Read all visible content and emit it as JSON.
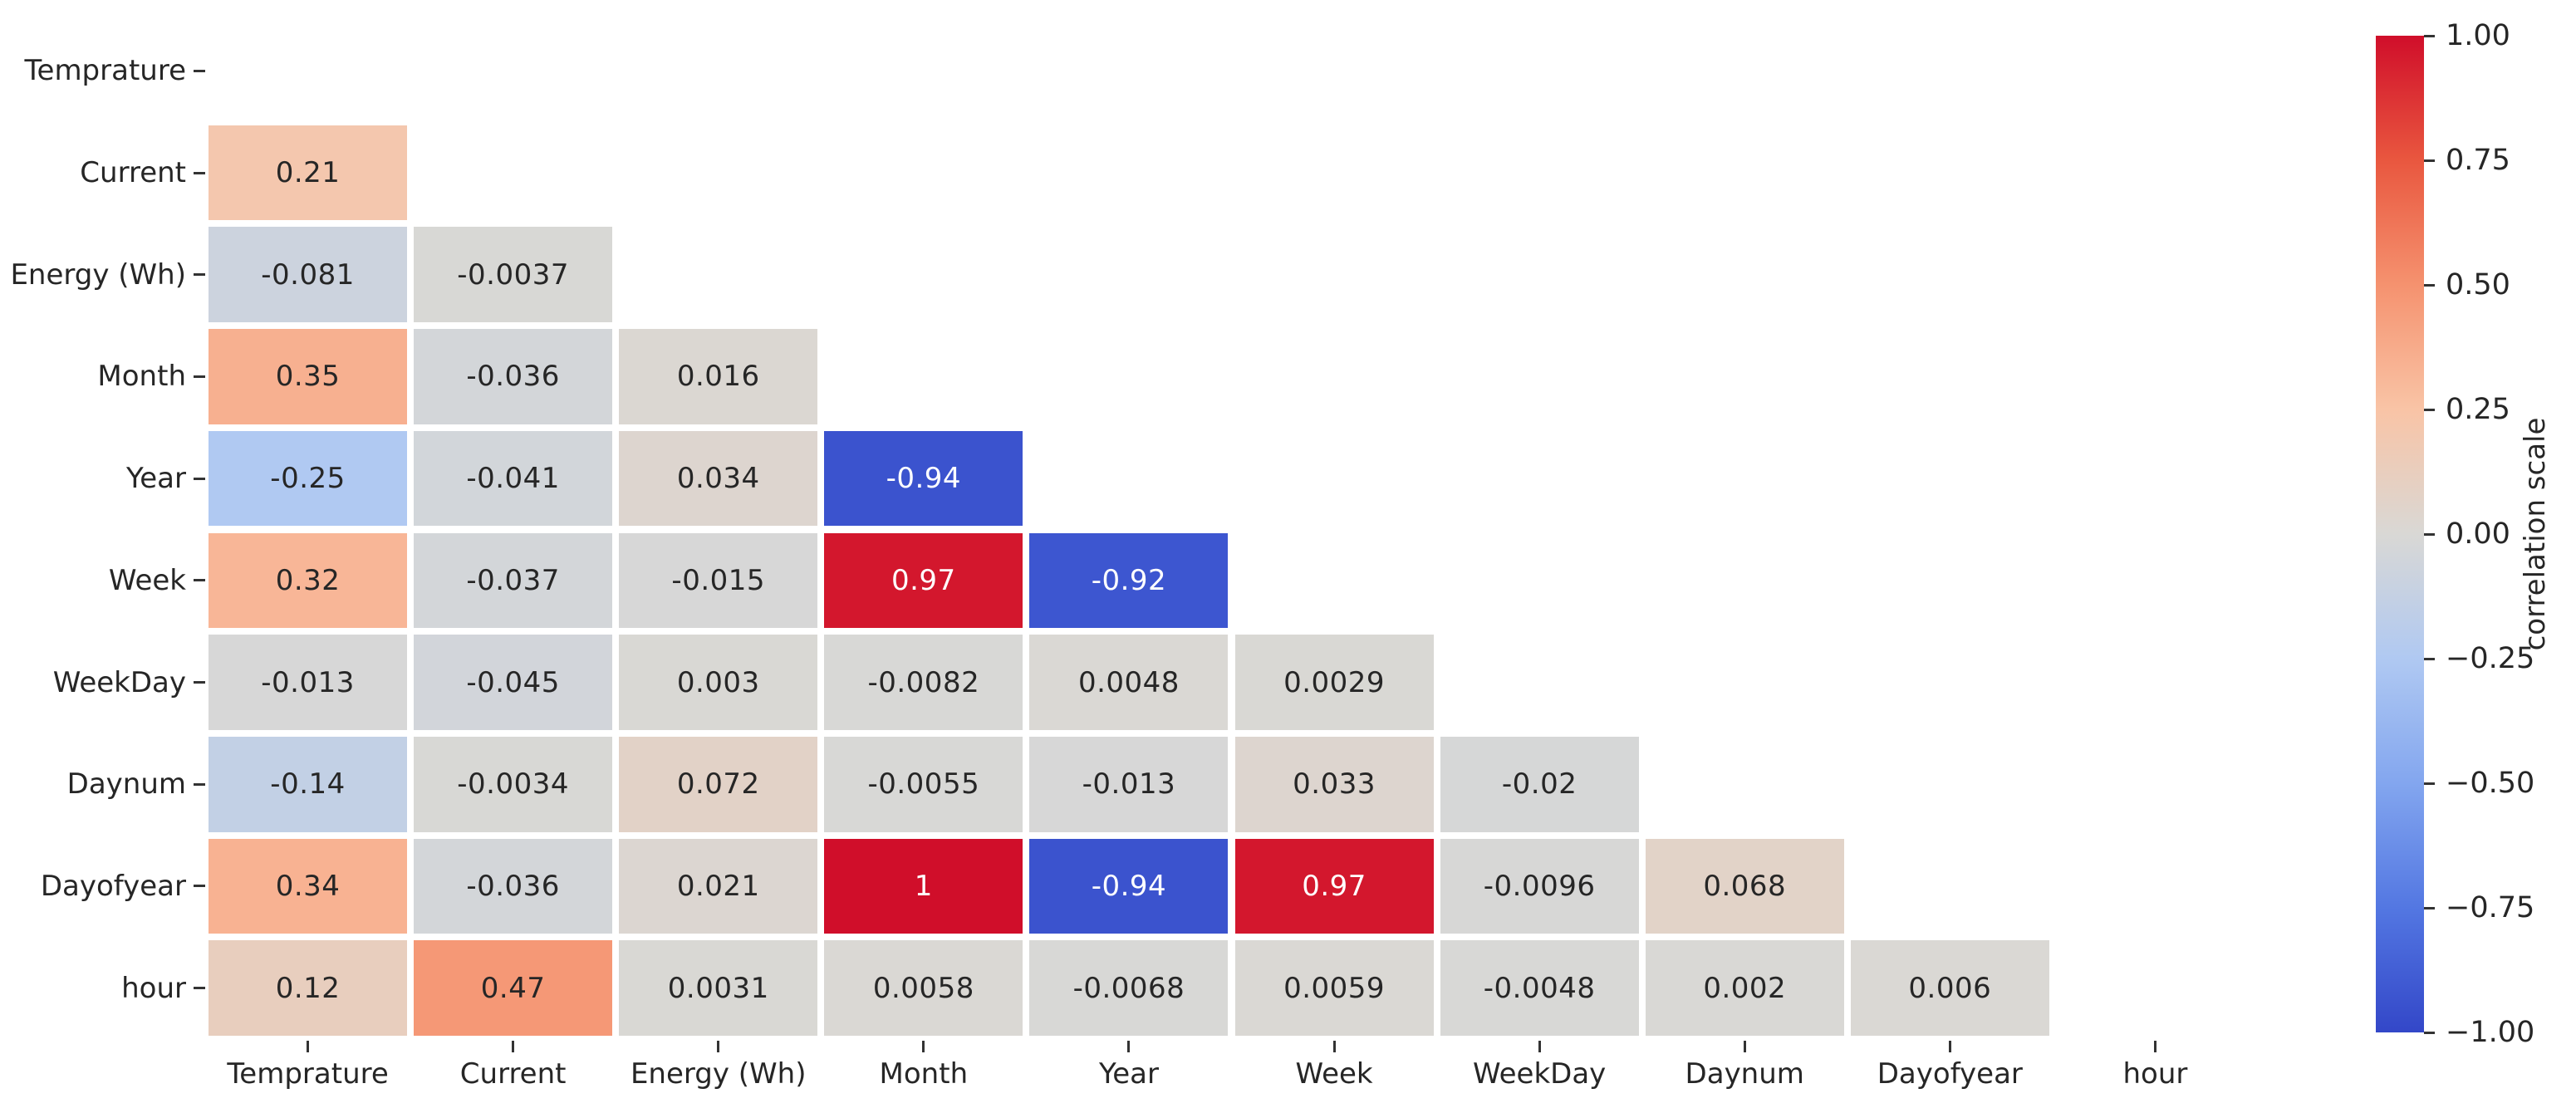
{
  "chart_data": {
    "type": "heatmap",
    "title": "",
    "mask": "upper-triangle-and-diagonal-hidden",
    "variables": [
      "Temprature",
      "Current",
      "Energy (Wh)",
      "Month",
      "Year",
      "Week",
      "WeekDay",
      "Daynum",
      "Dayofyear",
      "hour"
    ],
    "rows": [
      {
        "name": "Temprature",
        "values": [],
        "labels": []
      },
      {
        "name": "Current",
        "values": [
          0.21
        ],
        "labels": [
          "0.21"
        ]
      },
      {
        "name": "Energy (Wh)",
        "values": [
          -0.081,
          -0.0037
        ],
        "labels": [
          "-0.081",
          "-0.0037"
        ]
      },
      {
        "name": "Month",
        "values": [
          0.35,
          -0.036,
          0.016
        ],
        "labels": [
          "0.35",
          "-0.036",
          "0.016"
        ]
      },
      {
        "name": "Year",
        "values": [
          -0.25,
          -0.041,
          0.034,
          -0.94
        ],
        "labels": [
          "-0.25",
          "-0.041",
          "0.034",
          "-0.94"
        ]
      },
      {
        "name": "Week",
        "values": [
          0.32,
          -0.037,
          -0.015,
          0.97,
          -0.92
        ],
        "labels": [
          "0.32",
          "-0.037",
          "-0.015",
          "0.97",
          "-0.92"
        ]
      },
      {
        "name": "WeekDay",
        "values": [
          -0.013,
          -0.045,
          0.003,
          -0.0082,
          0.0048,
          0.0029
        ],
        "labels": [
          "-0.013",
          "-0.045",
          "0.003",
          "-0.0082",
          "0.0048",
          "0.0029"
        ]
      },
      {
        "name": "Daynum",
        "values": [
          -0.14,
          -0.0034,
          0.072,
          -0.0055,
          -0.013,
          0.033,
          -0.02
        ],
        "labels": [
          "-0.14",
          "-0.0034",
          "0.072",
          "-0.0055",
          "-0.013",
          "0.033",
          "-0.02"
        ]
      },
      {
        "name": "Dayofyear",
        "values": [
          0.34,
          -0.036,
          0.021,
          1,
          -0.94,
          0.97,
          -0.0096,
          0.068
        ],
        "labels": [
          "0.34",
          "-0.036",
          "0.021",
          "1",
          "-0.94",
          "0.97",
          "-0.0096",
          "0.068"
        ]
      },
      {
        "name": "hour",
        "values": [
          0.12,
          0.47,
          0.0031,
          0.0058,
          -0.0068,
          0.0059,
          -0.0048,
          0.002,
          0.006
        ],
        "labels": [
          "0.12",
          "0.47",
          "0.0031",
          "0.0058",
          "-0.0068",
          "0.0059",
          "-0.0048",
          "0.002",
          "0.006"
        ]
      }
    ],
    "colorbar": {
      "label": "correlation scale",
      "ticks": [
        "1.00",
        "0.75",
        "0.50",
        "0.25",
        "0.00",
        "−0.25",
        "−0.50",
        "−0.75",
        "−1.00"
      ],
      "vmin": -1,
      "vmax": 1
    },
    "colormap_anchors": [
      [
        -1.0,
        "#3347c8"
      ],
      [
        -0.75,
        "#5377e2"
      ],
      [
        -0.5,
        "#83a6ef"
      ],
      [
        -0.25,
        "#b0c9f2"
      ],
      [
        0.0,
        "#d9d8d5"
      ],
      [
        0.25,
        "#f9c4a6"
      ],
      [
        0.5,
        "#f5926f"
      ],
      [
        0.75,
        "#e9573f"
      ],
      [
        1.0,
        "#d00e2a"
      ]
    ],
    "colors": {
      "text_dark": "#262626",
      "text_light": "#ffffff",
      "tick": "#333333",
      "background": "#ffffff"
    }
  }
}
